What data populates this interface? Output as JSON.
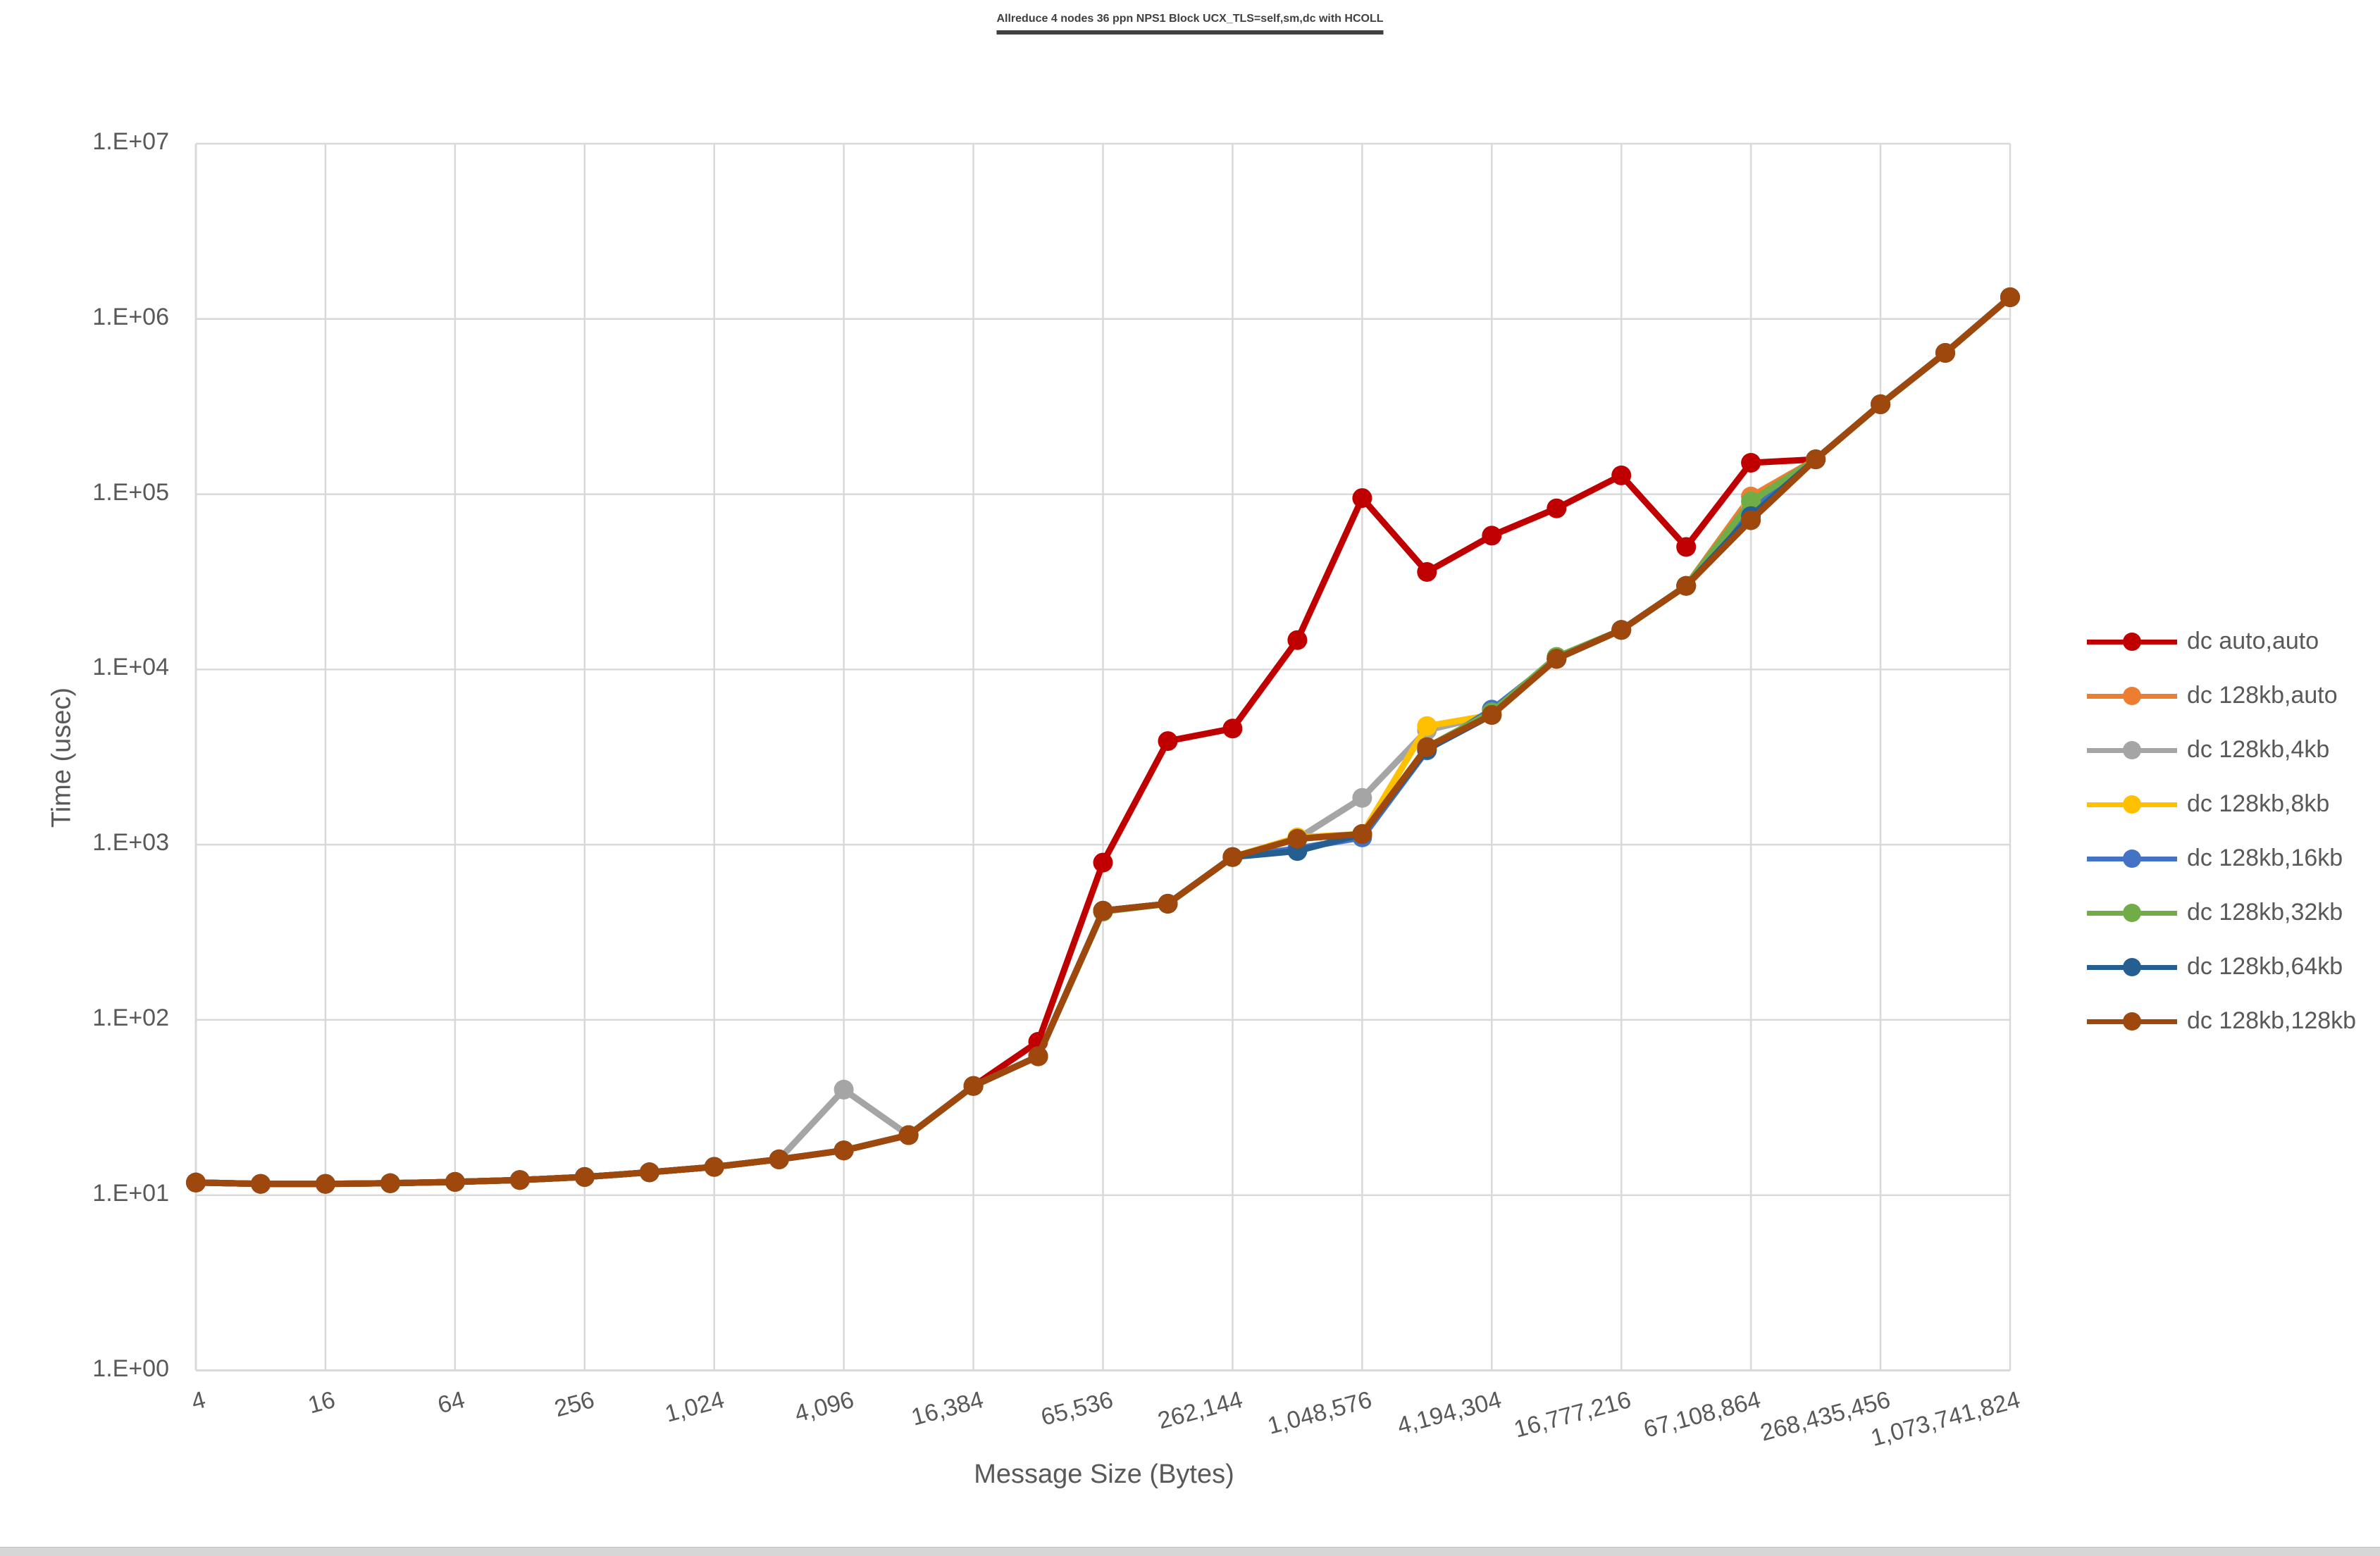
{
  "title": "Allreduce 4 nodes 36 ppn NPS1 Block UCX_TLS=self,sm,dc with HCOLL",
  "colors": {
    "grid": "#D9D9D9",
    "axis_text": "#595959",
    "title_text": "#404040"
  },
  "chart_data": {
    "type": "line",
    "title": "Allreduce 4 nodes 36 ppn NPS1 Block UCX_TLS=self,sm,dc with HCOLL",
    "xlabel": "Message Size (Bytes)",
    "ylabel": "Time (usec)",
    "x_scale": "log2",
    "y_scale": "log10",
    "ylim": [
      1,
      10000000
    ],
    "grid": true,
    "legend_position": "right",
    "x": [
      4,
      8,
      16,
      32,
      64,
      128,
      256,
      512,
      1024,
      2048,
      4096,
      8192,
      16384,
      32768,
      65536,
      131072,
      262144,
      524288,
      1048576,
      2097152,
      4194304,
      8388608,
      16777216,
      33554432,
      67108864,
      134217728,
      268435456,
      536870912,
      1073741824
    ],
    "x_tick_labels": [
      "4",
      "16",
      "64",
      "256",
      "1,024",
      "4,096",
      "16,384",
      "65,536",
      "262,144",
      "1,048,576",
      "4,194,304",
      "16,777,216",
      "67,108,864",
      "268,435,456",
      "1,073,741,824"
    ],
    "y_tick_labels": [
      "1.E+00",
      "1.E+01",
      "1.E+02",
      "1.E+03",
      "1.E+04",
      "1.E+05",
      "1.E+06",
      "1.E+07"
    ],
    "series": [
      {
        "name": "dc auto,auto",
        "color": "#C00000",
        "values": [
          11.8,
          11.6,
          11.6,
          11.7,
          11.9,
          12.2,
          12.7,
          13.5,
          14.5,
          16,
          18,
          22,
          42,
          75,
          790,
          3900,
          4600,
          14700,
          95000,
          36000,
          58000,
          83000,
          128000,
          50000,
          151000,
          158000,
          326000,
          640000,
          1330000
        ]
      },
      {
        "name": "dc 128kb,auto",
        "color": "#ED7D31",
        "values": [
          11.8,
          11.6,
          11.6,
          11.7,
          11.9,
          12.2,
          12.7,
          13.5,
          14.5,
          16,
          18,
          22,
          42,
          62,
          420,
          460,
          850,
          1080,
          1150,
          3600,
          5500,
          11500,
          16800,
          30000,
          97000,
          158000,
          326000,
          640000,
          1330000
        ]
      },
      {
        "name": "dc 128kb,4kb",
        "color": "#A5A5A5",
        "values": [
          11.8,
          11.6,
          11.6,
          11.7,
          11.9,
          12.2,
          12.7,
          13.5,
          14.5,
          16,
          40,
          22,
          42,
          62,
          420,
          460,
          850,
          1080,
          1850,
          4500,
          5500,
          11500,
          16800,
          30000,
          84000,
          158000,
          326000,
          640000,
          1330000
        ]
      },
      {
        "name": "dc 128kb,8kb",
        "color": "#FFC000",
        "values": [
          11.8,
          11.6,
          11.6,
          11.7,
          11.9,
          12.2,
          12.7,
          13.5,
          14.5,
          16,
          18,
          22,
          42,
          62,
          420,
          460,
          850,
          1100,
          1150,
          4750,
          5500,
          11500,
          16800,
          30000,
          86000,
          158000,
          326000,
          640000,
          1330000
        ]
      },
      {
        "name": "dc 128kb,16kb",
        "color": "#4472C4",
        "values": [
          11.8,
          11.6,
          11.6,
          11.7,
          11.9,
          12.2,
          12.7,
          13.5,
          14.5,
          16,
          18,
          22,
          42,
          62,
          420,
          460,
          850,
          950,
          1100,
          3450,
          5900,
          11500,
          16800,
          30000,
          80000,
          158000,
          326000,
          640000,
          1330000
        ]
      },
      {
        "name": "dc 128kb,32kb",
        "color": "#70AD47",
        "values": [
          11.8,
          11.6,
          11.6,
          11.7,
          11.9,
          12.2,
          12.7,
          13.5,
          14.5,
          16,
          18,
          22,
          42,
          62,
          415,
          460,
          850,
          1080,
          1150,
          3600,
          5700,
          11800,
          16800,
          30000,
          91000,
          158000,
          326000,
          640000,
          1330000
        ]
      },
      {
        "name": "dc 128kb,64kb",
        "color": "#255E91",
        "values": [
          11.8,
          11.6,
          11.6,
          11.7,
          11.9,
          12.2,
          12.7,
          13.5,
          14.5,
          16,
          18,
          22,
          42,
          62,
          420,
          460,
          850,
          920,
          1150,
          3500,
          5500,
          11500,
          16800,
          30000,
          75000,
          158000,
          326000,
          640000,
          1330000
        ]
      },
      {
        "name": "dc 128kb,128kb",
        "color": "#9E480E",
        "values": [
          11.8,
          11.6,
          11.6,
          11.7,
          11.9,
          12.2,
          12.7,
          13.5,
          14.5,
          16,
          18,
          22,
          42,
          62,
          420,
          460,
          850,
          1080,
          1150,
          3600,
          5500,
          11500,
          16800,
          30000,
          71000,
          158000,
          326000,
          640000,
          1330000
        ]
      }
    ]
  }
}
